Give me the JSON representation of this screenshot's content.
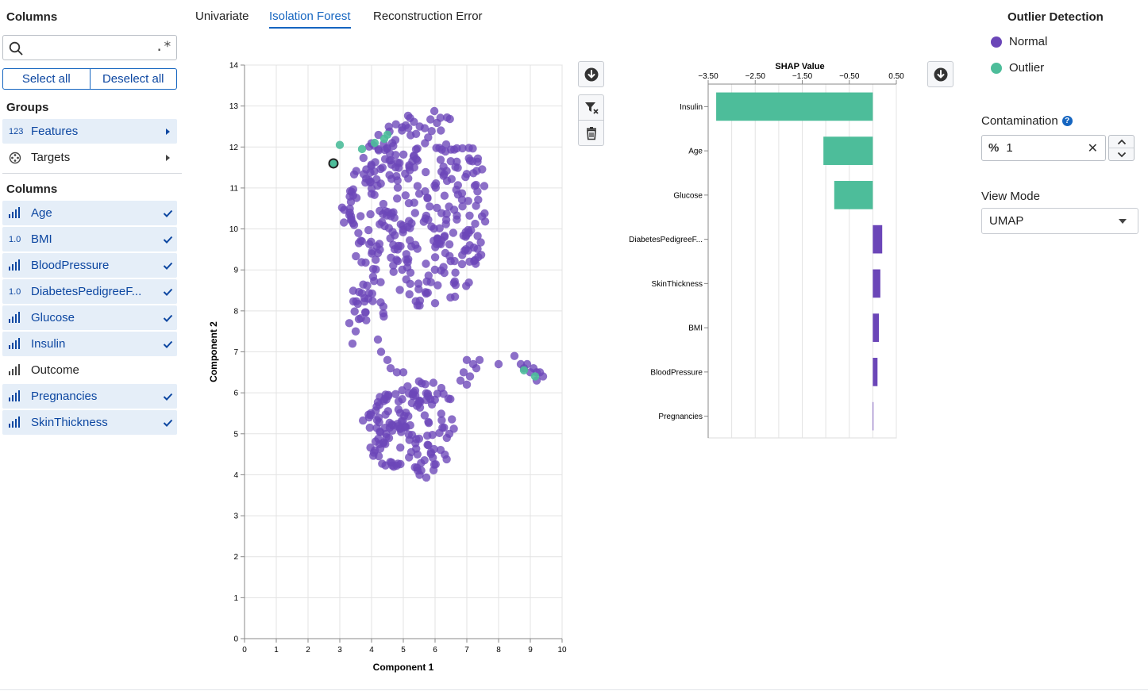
{
  "sidebar": {
    "columns_heading": "Columns",
    "search": {
      "value": "",
      "placeholder": "",
      "regex_label": ".*"
    },
    "select_all": "Select all",
    "deselect_all": "Deselect all",
    "groups_heading": "Groups",
    "groups": [
      {
        "label": "Features",
        "icon": "123",
        "selected": true
      },
      {
        "label": "Targets",
        "icon": "target-icon",
        "selected": false
      }
    ],
    "columns_list_heading": "Columns",
    "columns": [
      {
        "label": "Age",
        "icon": "bar-chart-icon",
        "selected": true
      },
      {
        "label": "BMI",
        "icon": "1.0",
        "selected": true
      },
      {
        "label": "BloodPressure",
        "icon": "bar-chart-icon",
        "selected": true
      },
      {
        "label": "DiabetesPedigreeF...",
        "icon": "1.0",
        "selected": true
      },
      {
        "label": "Glucose",
        "icon": "bar-chart-icon",
        "selected": true
      },
      {
        "label": "Insulin",
        "icon": "bar-chart-icon",
        "selected": true
      },
      {
        "label": "Outcome",
        "icon": "bar-chart-icon",
        "selected": false
      },
      {
        "label": "Pregnancies",
        "icon": "bar-chart-icon",
        "selected": true
      },
      {
        "label": "SkinThickness",
        "icon": "bar-chart-icon",
        "selected": true
      }
    ]
  },
  "tabs": [
    {
      "label": "Univariate",
      "active": false
    },
    {
      "label": "Isolation Forest",
      "active": true
    },
    {
      "label": "Reconstruction Error",
      "active": false
    }
  ],
  "colors": {
    "normal": "#6b46b8",
    "outlier": "#4dbd9a",
    "accent": "#1565c0"
  },
  "right_panel": {
    "title": "Outlier Detection",
    "legend": [
      {
        "label": "Normal",
        "color": "#6b46b8"
      },
      {
        "label": "Outlier",
        "color": "#4dbd9a"
      }
    ],
    "contamination_label": "Contamination",
    "contamination_unit": "%",
    "contamination_value": "1",
    "view_mode_label": "View Mode",
    "view_mode_value": "UMAP"
  },
  "chart_data": [
    {
      "type": "scatter",
      "title": "",
      "xlabel": "Component 1",
      "ylabel": "Component 2",
      "xlim": [
        0,
        10
      ],
      "ylim": [
        0,
        14
      ],
      "xticks": [
        "0",
        "1",
        "2",
        "3",
        "4",
        "5",
        "6",
        "7",
        "8",
        "9",
        "10"
      ],
      "yticks": [
        "0",
        "1",
        "2",
        "3",
        "4",
        "5",
        "6",
        "7",
        "8",
        "9",
        "10",
        "11",
        "12",
        "13",
        "14"
      ],
      "grid": true,
      "clusters": [
        {
          "series": "Normal",
          "cx": 5.3,
          "cy": 10.5,
          "rx": 2.4,
          "ry": 2.4,
          "n": 330
        },
        {
          "series": "Normal",
          "cx": 5.2,
          "cy": 5.1,
          "rx": 1.6,
          "ry": 1.2,
          "n": 150
        },
        {
          "series": "Normal",
          "cx": 3.9,
          "cy": 8.3,
          "rx": 0.7,
          "ry": 0.6,
          "n": 25
        }
      ],
      "normal_points": [
        {
          "x": 4.2,
          "y": 7.3
        },
        {
          "x": 4.3,
          "y": 7.0
        },
        {
          "x": 4.5,
          "y": 6.8
        },
        {
          "x": 4.6,
          "y": 6.6
        },
        {
          "x": 4.8,
          "y": 6.5
        },
        {
          "x": 5.0,
          "y": 6.5
        },
        {
          "x": 7.0,
          "y": 6.8
        },
        {
          "x": 7.2,
          "y": 6.7
        },
        {
          "x": 7.3,
          "y": 6.6
        },
        {
          "x": 6.9,
          "y": 6.5
        },
        {
          "x": 7.1,
          "y": 6.4
        },
        {
          "x": 6.8,
          "y": 6.3
        },
        {
          "x": 7.4,
          "y": 6.8
        },
        {
          "x": 7.0,
          "y": 6.2
        },
        {
          "x": 8.5,
          "y": 6.9
        },
        {
          "x": 8.7,
          "y": 6.7
        },
        {
          "x": 8.9,
          "y": 6.7
        },
        {
          "x": 9.1,
          "y": 6.6
        },
        {
          "x": 9.2,
          "y": 6.5
        },
        {
          "x": 9.3,
          "y": 6.5
        },
        {
          "x": 9.4,
          "y": 6.4
        },
        {
          "x": 9.0,
          "y": 6.5
        },
        {
          "x": 9.2,
          "y": 6.3
        },
        {
          "x": 8.8,
          "y": 6.6
        },
        {
          "x": 8.0,
          "y": 6.7
        },
        {
          "x": 3.5,
          "y": 7.5
        },
        {
          "x": 3.3,
          "y": 7.7
        },
        {
          "x": 3.6,
          "y": 7.8
        },
        {
          "x": 3.4,
          "y": 7.2
        }
      ],
      "outlier_points": [
        {
          "x": 2.8,
          "y": 11.6
        },
        {
          "x": 3.0,
          "y": 12.05
        },
        {
          "x": 3.7,
          "y": 11.95
        },
        {
          "x": 4.1,
          "y": 12.1
        },
        {
          "x": 4.5,
          "y": 12.3
        },
        {
          "x": 4.4,
          "y": 12.2
        },
        {
          "x": 8.8,
          "y": 6.55
        },
        {
          "x": 9.15,
          "y": 6.4
        }
      ],
      "highlighted_point": {
        "x": 2.8,
        "y": 11.6
      }
    },
    {
      "type": "bar",
      "orientation": "horizontal",
      "title": "SHAP Value",
      "xlabel": "SHAP Value",
      "ylabel": "",
      "xlim": [
        -3.5,
        0.5
      ],
      "xticks": [
        "−3.50",
        "−2.50",
        "−1.50",
        "−0.50",
        "0.50"
      ],
      "grid": true,
      "categories": [
        "Insulin",
        "Age",
        "Glucose",
        "DiabetesPedigreeF...",
        "SkinThickness",
        "BMI",
        "BloodPressure",
        "Pregnancies"
      ],
      "values": [
        -3.33,
        -1.05,
        -0.82,
        0.2,
        0.16,
        0.13,
        0.1,
        0.01
      ]
    }
  ]
}
